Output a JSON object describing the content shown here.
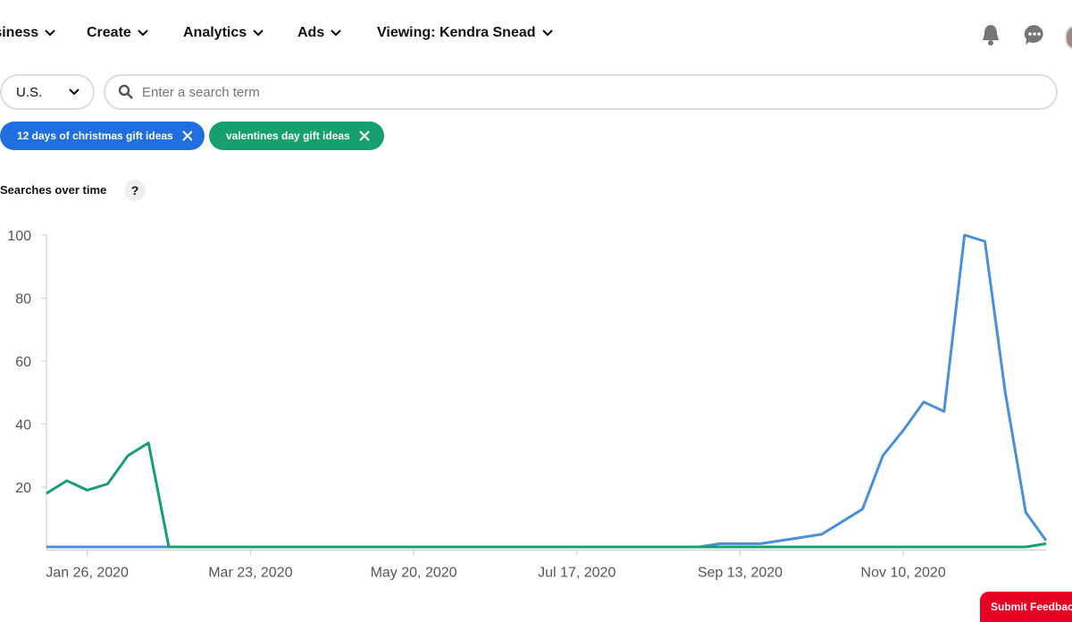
{
  "nav": {
    "items": [
      "Business",
      "Create",
      "Analytics",
      "Ads",
      "Viewing: Kendra Snead"
    ]
  },
  "filters": {
    "country": "U.S.",
    "search_placeholder": "Enter a search term"
  },
  "chips": [
    "12 days of christmas gift ideas",
    "valentines day gift ideas"
  ],
  "section": {
    "title": "Searches over time",
    "help": "?"
  },
  "feedback": "Submit Feedback",
  "chart_data": {
    "type": "line",
    "categories": [
      null,
      null,
      "Jan 26, 2020",
      null,
      null,
      null,
      null,
      null,
      null,
      null,
      "Mar 23, 2020",
      null,
      null,
      null,
      null,
      null,
      null,
      null,
      "May 20, 2020",
      null,
      null,
      null,
      null,
      null,
      null,
      null,
      "Jul 17, 2020",
      null,
      null,
      null,
      null,
      null,
      null,
      null,
      "Sep 13, 2020",
      null,
      null,
      null,
      null,
      null,
      null,
      null,
      "Nov 10, 2020",
      null,
      null,
      null,
      null,
      null,
      null,
      null
    ],
    "series": [
      {
        "name": "12 days of christmas gift ideas",
        "color": "#4a8fdc",
        "values": [
          1,
          1,
          1,
          1,
          1,
          1,
          1,
          1,
          1,
          1,
          1,
          1,
          1,
          1,
          1,
          1,
          1,
          1,
          1,
          1,
          1,
          1,
          1,
          1,
          1,
          1,
          1,
          1,
          1,
          1,
          1,
          1,
          1,
          2,
          2,
          2,
          3,
          4,
          5,
          9,
          13,
          30,
          38,
          47,
          44,
          100,
          98,
          50,
          12,
          3
        ]
      },
      {
        "name": "valentines day gift ideas",
        "color": "#15a06e",
        "values": [
          18,
          22,
          19,
          21,
          30,
          34,
          1,
          1,
          1,
          1,
          1,
          1,
          1,
          1,
          1,
          1,
          1,
          1,
          1,
          1,
          1,
          1,
          1,
          1,
          1,
          1,
          1,
          1,
          1,
          1,
          1,
          1,
          1,
          1,
          1,
          1,
          1,
          1,
          1,
          1,
          1,
          1,
          1,
          1,
          1,
          1,
          1,
          1,
          1,
          2
        ]
      }
    ],
    "ylim": [
      0,
      100
    ],
    "yticks": [
      20,
      40,
      60,
      80,
      100
    ]
  }
}
